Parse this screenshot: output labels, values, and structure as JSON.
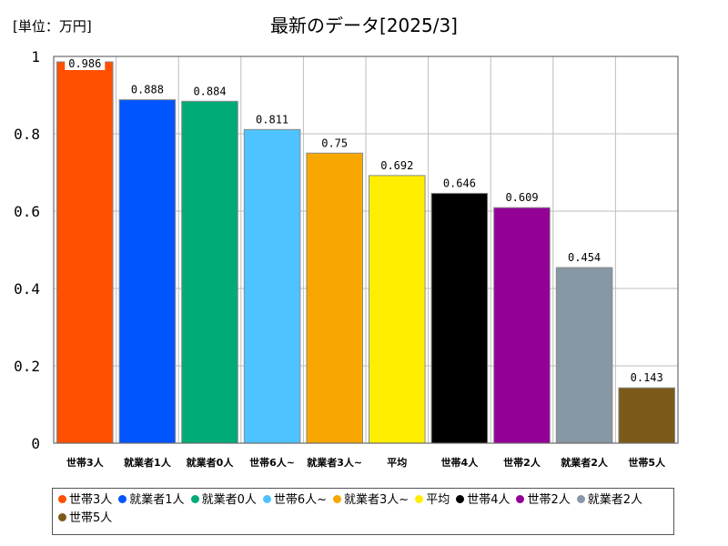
{
  "unit_label": "[単位：万円]",
  "chart_data": {
    "type": "bar",
    "title": "最新のデータ[2025/3]",
    "xlabel": "",
    "ylabel": "",
    "ylim": [
      0,
      1
    ],
    "yticks": [
      0,
      0.2,
      0.4,
      0.6,
      0.8,
      1
    ],
    "ytick_labels": [
      "0",
      "0.2",
      "0.4",
      "0.6",
      "0.8",
      "1"
    ],
    "grid": true,
    "legend_position": "bottom",
    "categories": [
      "世帯3人",
      "就業者1人",
      "就業者0人",
      "世帯6人~",
      "就業者3人~",
      "平均",
      "世帯4人",
      "世帯2人",
      "就業者2人",
      "世帯5人"
    ],
    "values": [
      0.986,
      0.888,
      0.884,
      0.811,
      0.75,
      0.692,
      0.646,
      0.609,
      0.454,
      0.143
    ],
    "value_labels": [
      "0.986",
      "0.888",
      "0.884",
      "0.811",
      "0.75",
      "0.692",
      "0.646",
      "0.609",
      "0.454",
      "0.143"
    ],
    "colors": [
      "#ff4f00",
      "#0055ff",
      "#00ab78",
      "#4ec3ff",
      "#f7a700",
      "#ffee00",
      "#000000",
      "#930096",
      "#8797a4",
      "#7b5a17"
    ]
  }
}
